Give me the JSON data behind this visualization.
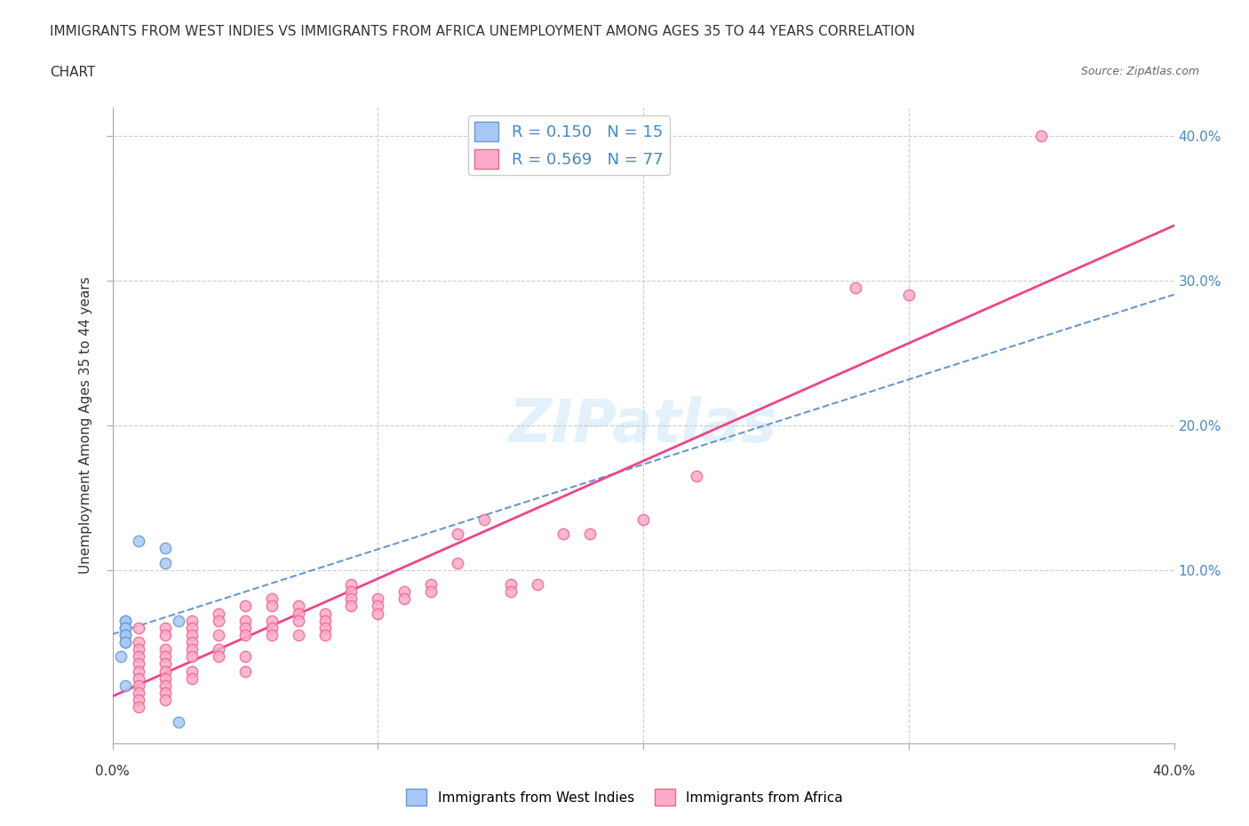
{
  "title_line1": "IMMIGRANTS FROM WEST INDIES VS IMMIGRANTS FROM AFRICA UNEMPLOYMENT AMONG AGES 35 TO 44 YEARS CORRELATION",
  "title_line2": "CHART",
  "source": "Source: ZipAtlas.com",
  "ylabel": "Unemployment Among Ages 35 to 44 years",
  "xlabel": "",
  "xlim": [
    0.0,
    0.4
  ],
  "ylim": [
    -0.02,
    0.42
  ],
  "xticks": [
    0.0,
    0.1,
    0.2,
    0.3,
    0.4
  ],
  "yticks": [
    0.1,
    0.2,
    0.3,
    0.4
  ],
  "xtick_labels": [
    "0.0%",
    "",
    "",
    "",
    "40.0%"
  ],
  "ytick_labels": [
    "10.0%",
    "20.0%",
    "30.0%",
    "40.0%"
  ],
  "west_indies_color": "#a8c8f8",
  "west_indies_edge": "#6699cc",
  "africa_color": "#ffaacc",
  "africa_edge": "#ee6688",
  "trend_blue_color": "#6699cc",
  "trend_pink_color": "#ee4488",
  "watermark": "ZIPatlas",
  "legend_R1": "R = 0.150",
  "legend_N1": "N = 15",
  "legend_R2": "R = 0.569",
  "legend_N2": "N = 77",
  "legend_label1": "Immigrants from West Indies",
  "legend_label2": "Immigrants from Africa",
  "west_indies_x": [
    0.01,
    0.02,
    0.02,
    0.025,
    0.005,
    0.005,
    0.005,
    0.005,
    0.005,
    0.005,
    0.005,
    0.005,
    0.003,
    0.005,
    0.025
  ],
  "west_indies_y": [
    0.12,
    0.115,
    0.105,
    0.065,
    0.065,
    0.065,
    0.06,
    0.06,
    0.055,
    0.055,
    0.05,
    0.05,
    0.04,
    0.02,
    -0.005
  ],
  "africa_x": [
    0.35,
    0.28,
    0.3,
    0.22,
    0.2,
    0.18,
    0.17,
    0.16,
    0.15,
    0.15,
    0.14,
    0.13,
    0.13,
    0.12,
    0.12,
    0.11,
    0.11,
    0.1,
    0.1,
    0.1,
    0.09,
    0.09,
    0.09,
    0.09,
    0.08,
    0.08,
    0.08,
    0.08,
    0.07,
    0.07,
    0.07,
    0.07,
    0.06,
    0.06,
    0.06,
    0.06,
    0.06,
    0.05,
    0.05,
    0.05,
    0.05,
    0.05,
    0.05,
    0.04,
    0.04,
    0.04,
    0.04,
    0.04,
    0.03,
    0.03,
    0.03,
    0.03,
    0.03,
    0.03,
    0.03,
    0.03,
    0.02,
    0.02,
    0.02,
    0.02,
    0.02,
    0.02,
    0.02,
    0.02,
    0.02,
    0.02,
    0.01,
    0.01,
    0.01,
    0.01,
    0.01,
    0.01,
    0.01,
    0.01,
    0.01,
    0.01,
    0.01
  ],
  "africa_y": [
    0.4,
    0.295,
    0.29,
    0.165,
    0.135,
    0.125,
    0.125,
    0.09,
    0.09,
    0.085,
    0.135,
    0.125,
    0.105,
    0.09,
    0.085,
    0.085,
    0.08,
    0.08,
    0.075,
    0.07,
    0.09,
    0.085,
    0.08,
    0.075,
    0.07,
    0.065,
    0.06,
    0.055,
    0.075,
    0.07,
    0.065,
    0.055,
    0.08,
    0.075,
    0.065,
    0.06,
    0.055,
    0.075,
    0.065,
    0.06,
    0.055,
    0.04,
    0.03,
    0.07,
    0.065,
    0.055,
    0.045,
    0.04,
    0.065,
    0.06,
    0.055,
    0.05,
    0.045,
    0.04,
    0.03,
    0.025,
    0.06,
    0.055,
    0.045,
    0.04,
    0.035,
    0.03,
    0.025,
    0.02,
    0.015,
    0.01,
    0.06,
    0.05,
    0.045,
    0.04,
    0.035,
    0.03,
    0.025,
    0.02,
    0.015,
    0.01,
    0.005
  ]
}
